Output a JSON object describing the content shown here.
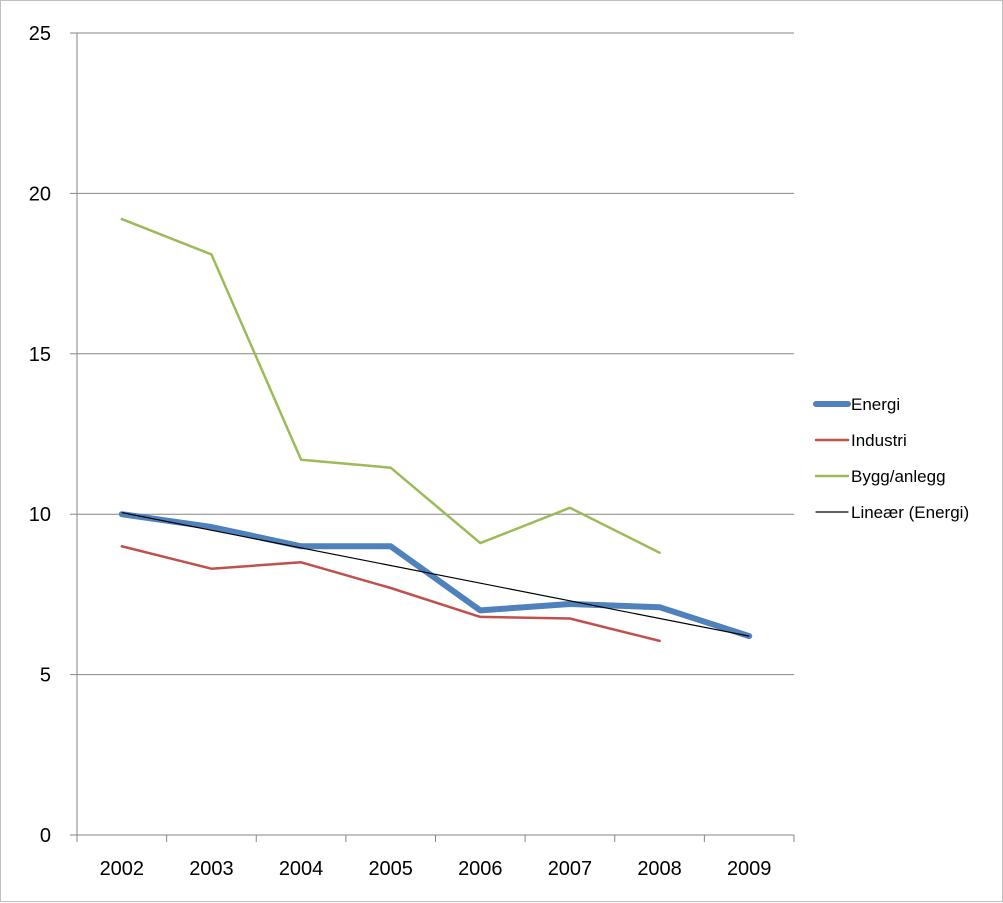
{
  "chart_data": {
    "type": "line",
    "categories": [
      "2002",
      "2003",
      "2004",
      "2005",
      "2006",
      "2007",
      "2008",
      "2009"
    ],
    "ylim": [
      0,
      25
    ],
    "yticks": [
      0,
      5,
      10,
      15,
      20,
      25
    ],
    "grid": true,
    "legend_position": "right",
    "series": [
      {
        "name": "Energi",
        "color": "#4f81bd",
        "values": [
          10.0,
          9.6,
          9.0,
          9.0,
          7.0,
          7.2,
          7.1,
          6.2
        ]
      },
      {
        "name": "Industri",
        "color": "#c0504d",
        "values": [
          9.0,
          8.3,
          8.5,
          7.7,
          6.8,
          6.75,
          6.05,
          null
        ]
      },
      {
        "name": "Bygg/anlegg",
        "color": "#9bbb59",
        "values": [
          19.2,
          18.1,
          11.7,
          11.45,
          9.1,
          10.2,
          8.8,
          null
        ]
      }
    ],
    "trendline": {
      "name": "Lineær (Energi)",
      "color": "#000000",
      "start": 10.05,
      "end": 6.2
    }
  }
}
